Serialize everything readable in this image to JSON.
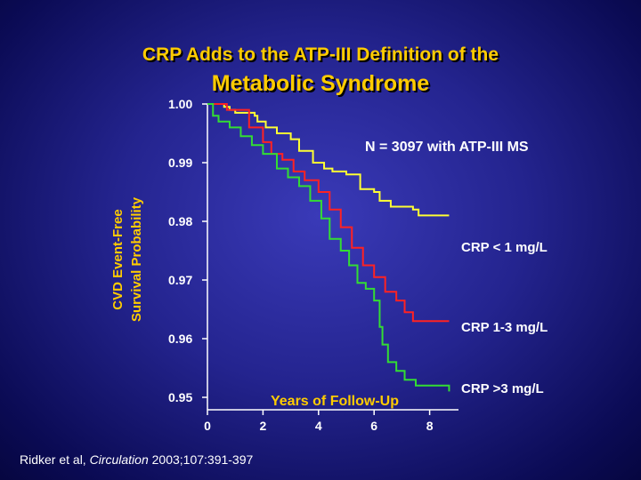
{
  "slide": {
    "title_line1": "CRP Adds to the ATP-III Definition of the",
    "title_line2": "Metabolic Syndrome",
    "citation_prefix": "Ridker et al, ",
    "citation_journal": "Circulation",
    "citation_suffix": " 2003;107:391-397"
  },
  "chart_data": {
    "type": "line",
    "title": "",
    "xlabel": "Years of Follow-Up",
    "ylabel_line1": "CVD Event-Free",
    "ylabel_line2": "Survival Probability",
    "annotation": "N = 3097 with ATP-III MS",
    "xlim": [
      0,
      8.6
    ],
    "ylim": [
      0.95,
      1.0
    ],
    "x_ticks": [
      "0",
      "2",
      "4",
      "6",
      "8"
    ],
    "y_ticks": [
      "1.00",
      "0.99",
      "0.98",
      "0.97",
      "0.96",
      "0.95"
    ],
    "grid": false,
    "colors": {
      "title": "#ffcc00",
      "text": "#ffffff",
      "axis": "#ffffff"
    },
    "series": [
      {
        "name": "CRP < 1 mg/L",
        "color": "#ffff33",
        "x": [
          0,
          0.5,
          0.6,
          0.8,
          1.0,
          1.5,
          1.7,
          1.8,
          2.1,
          2.5,
          3.0,
          3.3,
          3.8,
          4.2,
          4.5,
          5.0,
          5.5,
          6.0,
          6.2,
          6.6,
          7.4,
          7.6,
          8.7
        ],
        "y": [
          1.0,
          1.0,
          0.9995,
          0.999,
          0.9985,
          0.9985,
          0.998,
          0.997,
          0.996,
          0.995,
          0.994,
          0.992,
          0.99,
          0.989,
          0.9885,
          0.988,
          0.9855,
          0.985,
          0.9835,
          0.9825,
          0.982,
          0.981,
          0.981
        ]
      },
      {
        "name": "CRP 1-3 mg/L",
        "color": "#ff2222",
        "x": [
          0,
          0.6,
          0.7,
          1.3,
          1.5,
          2.0,
          2.3,
          2.7,
          3.1,
          3.5,
          4.0,
          4.4,
          4.8,
          5.2,
          5.6,
          6.0,
          6.4,
          6.8,
          7.1,
          7.4,
          8.7
        ],
        "y": [
          1.0,
          1.0,
          0.999,
          0.999,
          0.996,
          0.9935,
          0.9915,
          0.9905,
          0.9885,
          0.987,
          0.985,
          0.982,
          0.979,
          0.9755,
          0.9725,
          0.9705,
          0.968,
          0.9665,
          0.9645,
          0.963,
          0.963
        ]
      },
      {
        "name": "CRP >3 mg/L",
        "color": "#33dd33",
        "x": [
          0,
          0.2,
          0.4,
          0.8,
          1.2,
          1.6,
          2.0,
          2.5,
          2.9,
          3.3,
          3.7,
          4.1,
          4.4,
          4.8,
          5.1,
          5.4,
          5.7,
          6.0,
          6.2,
          6.3,
          6.5,
          6.8,
          7.1,
          7.5,
          8.7
        ],
        "y": [
          1.0,
          0.998,
          0.997,
          0.996,
          0.9945,
          0.993,
          0.9915,
          0.989,
          0.9875,
          0.986,
          0.9835,
          0.9805,
          0.977,
          0.975,
          0.9725,
          0.9695,
          0.9685,
          0.9665,
          0.962,
          0.959,
          0.956,
          0.9545,
          0.953,
          0.952,
          0.951
        ]
      }
    ]
  }
}
